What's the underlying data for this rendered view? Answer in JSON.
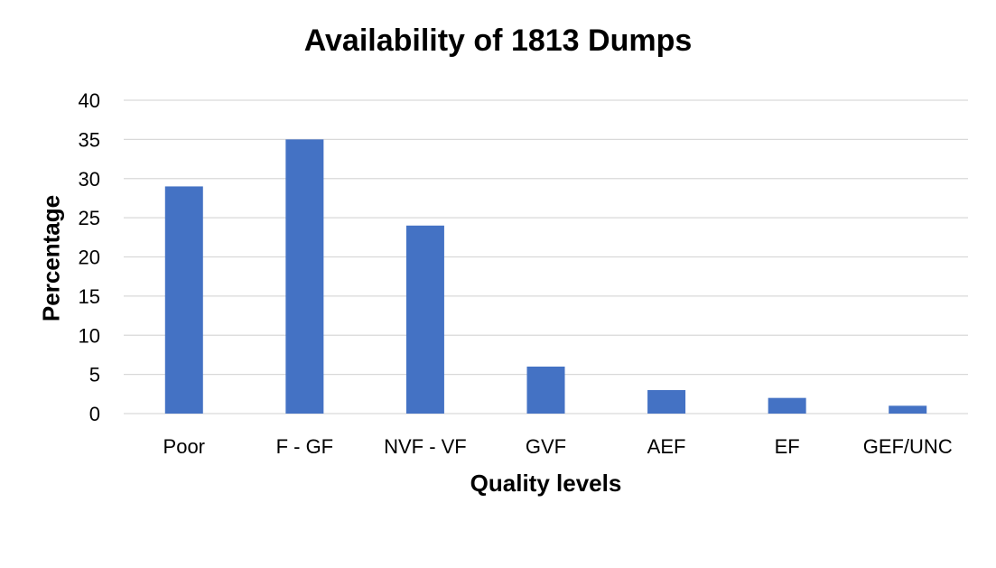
{
  "chart_data": {
    "type": "bar",
    "title": "Availability of 1813 Dumps",
    "xlabel": "Quality levels",
    "ylabel": "Percentage",
    "categories": [
      "Poor",
      "F - GF",
      "NVF - VF",
      "GVF",
      "AEF",
      "EF",
      "GEF/UNC"
    ],
    "values": [
      29,
      35,
      24,
      6,
      3,
      2,
      1
    ],
    "ylim": [
      0,
      40
    ],
    "yticks": [
      0,
      5,
      10,
      15,
      20,
      25,
      30,
      35,
      40
    ],
    "grid": true,
    "legend": "none",
    "bar_color": "#4472C4",
    "grid_color": "#D9D9D9"
  }
}
